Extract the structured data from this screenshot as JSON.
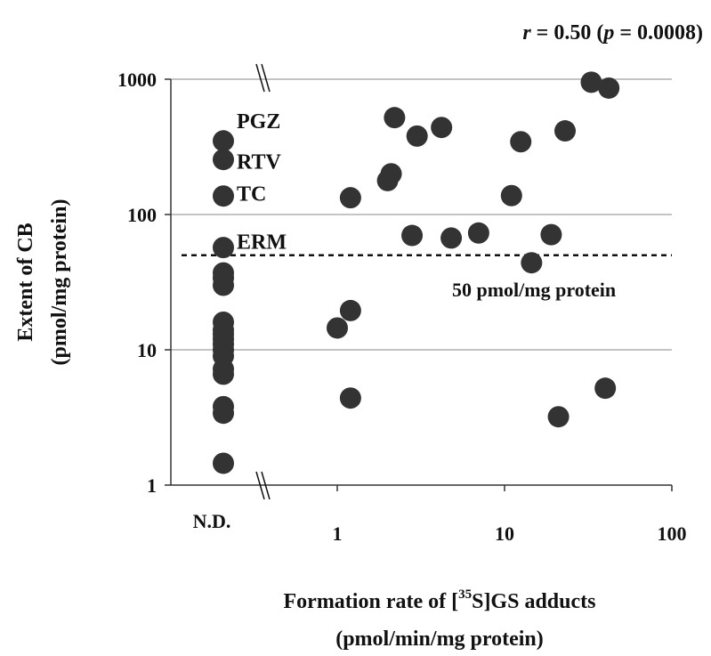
{
  "chart_data": {
    "type": "scatter",
    "title": {
      "prefix": "r",
      "mid": " = 0.50 (",
      "p": "p",
      "suffix": " = 0.0008)"
    },
    "ylabel": {
      "line1": "Extent of CB",
      "line2": "(pmol/mg protein)"
    },
    "xlabel": {
      "line1_pre": "Formation rate of [",
      "line1_sup": "35",
      "line1_post": "S]GS adducts",
      "line2": "(pmol/min/mg protein)"
    },
    "y_scale": "log",
    "x_scale": "log",
    "ylim": [
      1,
      1000
    ],
    "xlim": [
      0.3,
      100
    ],
    "y_ticks": [
      {
        "value": 1,
        "label": "1"
      },
      {
        "value": 10,
        "label": "10"
      },
      {
        "value": 100,
        "label": "100"
      },
      {
        "value": 1000,
        "label": "1000"
      }
    ],
    "x_ticks": [
      {
        "value": 1,
        "label": "1"
      },
      {
        "value": 10,
        "label": "10"
      },
      {
        "value": 100,
        "label": "100"
      }
    ],
    "nd_label": "N.D.",
    "grid": "horizontal",
    "threshold": {
      "value": 50,
      "label": "50 pmol/mg protein"
    },
    "nd_points": [
      350,
      255,
      137,
      57,
      37,
      34,
      30,
      16,
      14,
      13,
      12,
      11,
      10,
      9,
      7.2,
      6.6,
      3.8,
      3.4,
      1.45
    ],
    "nd_annotations": [
      {
        "label": "PGZ",
        "y": 500
      },
      {
        "label": "RTV",
        "y": 250
      },
      {
        "label": "TC",
        "y": 145
      },
      {
        "label": "ERM",
        "y": 64
      }
    ],
    "points": [
      {
        "x": 1.0,
        "y": 14.5
      },
      {
        "x": 1.2,
        "y": 19.5
      },
      {
        "x": 1.2,
        "y": 4.4
      },
      {
        "x": 1.2,
        "y": 133
      },
      {
        "x": 2.0,
        "y": 178
      },
      {
        "x": 2.1,
        "y": 200
      },
      {
        "x": 2.2,
        "y": 520
      },
      {
        "x": 2.8,
        "y": 70
      },
      {
        "x": 3.0,
        "y": 380
      },
      {
        "x": 4.2,
        "y": 440
      },
      {
        "x": 4.8,
        "y": 67
      },
      {
        "x": 7.0,
        "y": 73
      },
      {
        "x": 11.0,
        "y": 138
      },
      {
        "x": 12.5,
        "y": 345
      },
      {
        "x": 14.5,
        "y": 44
      },
      {
        "x": 19.0,
        "y": 71
      },
      {
        "x": 21.0,
        "y": 3.2
      },
      {
        "x": 23.0,
        "y": 415
      },
      {
        "x": 33.0,
        "y": 950
      },
      {
        "x": 40.0,
        "y": 5.2
      },
      {
        "x": 42.0,
        "y": 860
      }
    ]
  }
}
